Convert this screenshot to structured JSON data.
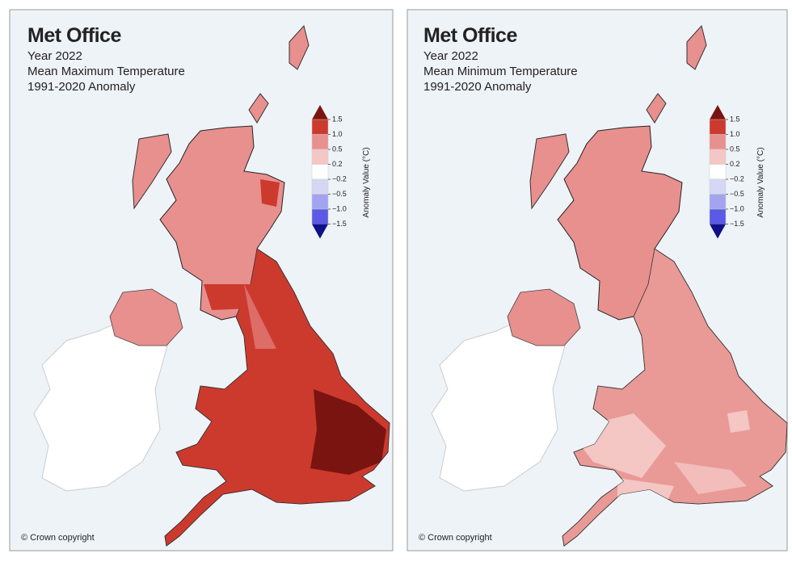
{
  "panels": [
    {
      "logo": "Met Office",
      "year": "Year 2022",
      "title": "Mean Maximum Temperature",
      "period": "1991-2020 Anomaly",
      "legend": {
        "label": "Anomaly Value (°C)",
        "ticks": [
          "1.5",
          "1.0",
          "0.5",
          "0.2",
          "−0.2",
          "−0.5",
          "−1.0",
          "−1.5"
        ]
      },
      "copyright": "© Crown copyright"
    },
    {
      "logo": "Met Office",
      "year": "Year 2022",
      "title": "Mean Minimum Temperature",
      "period": "1991-2020 Anomaly",
      "legend": {
        "label": "Anomaly Value (°C)",
        "ticks": [
          "1.5",
          "1.0",
          "0.5",
          "0.2",
          "−0.2",
          "−0.5",
          "−1.0",
          "−1.5"
        ]
      },
      "copyright": "© Crown copyright"
    }
  ]
}
